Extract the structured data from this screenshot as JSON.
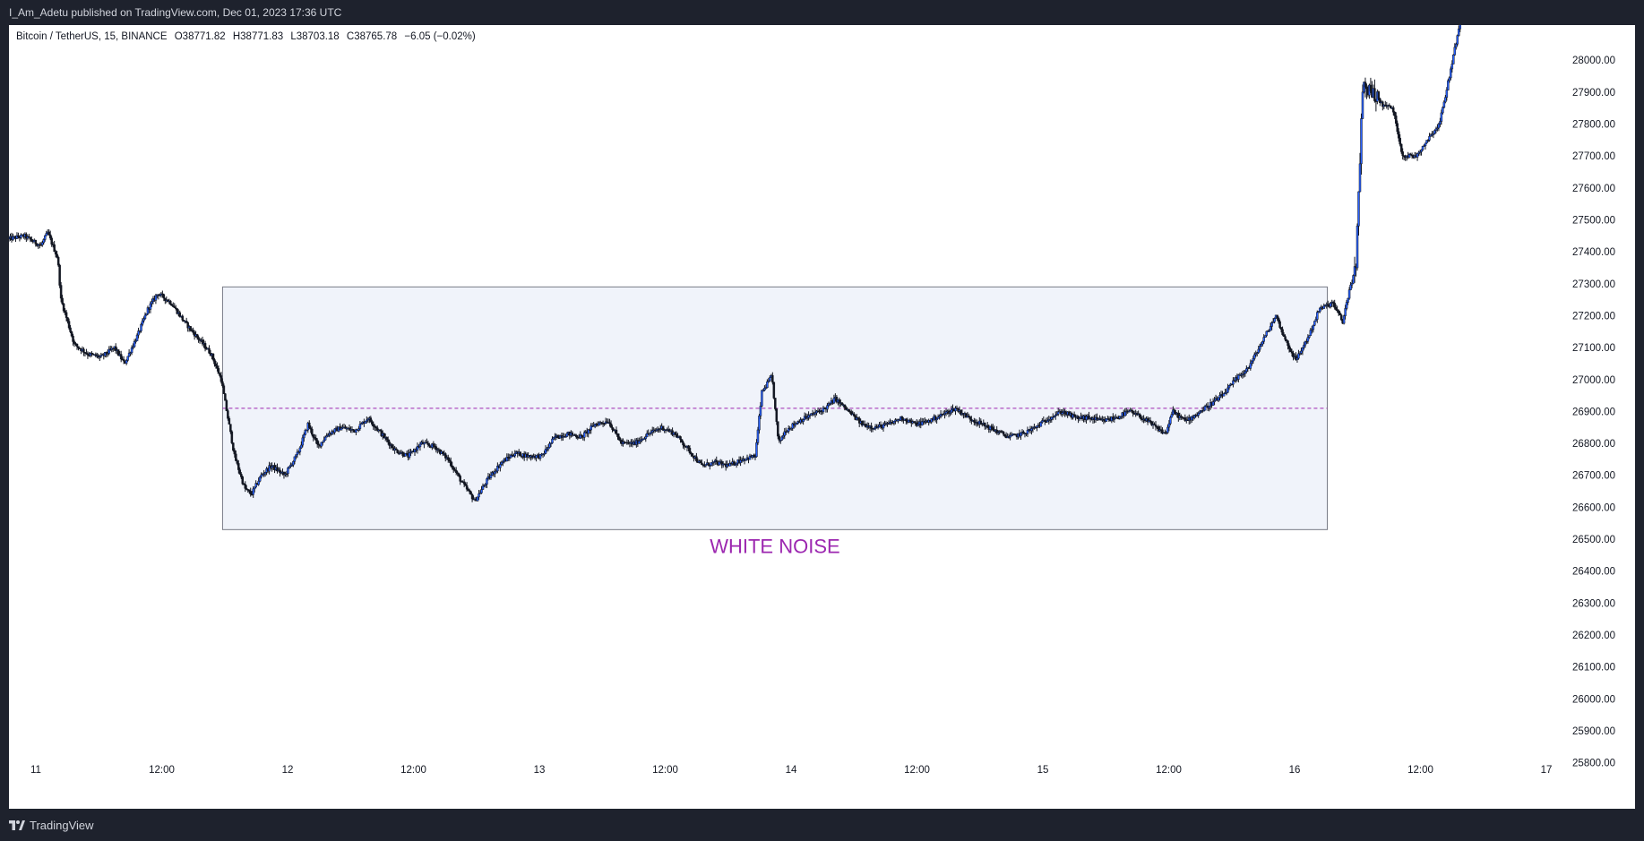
{
  "header": {
    "publisher_line": "I_Am_Adetu published on TradingView.com, Dec 01, 2023 17:36 UTC"
  },
  "legend": {
    "symbol": "Bitcoin / TetherUS, 15, BINANCE",
    "open": "O38771.82",
    "high": "H38771.83",
    "low": "L38703.18",
    "close": "C38765.78",
    "change": "−6.05 (−0.02%)"
  },
  "footer": {
    "brand": "TradingView"
  },
  "chart_data": {
    "type": "candlestick",
    "symbol": "Bitcoin / TetherUS",
    "interval": "15",
    "exchange": "BINANCE",
    "y_axis": {
      "ylim": [
        25740,
        28110
      ],
      "ticks": [
        "28000.00",
        "27900.00",
        "27800.00",
        "27700.00",
        "27600.00",
        "27500.00",
        "27400.00",
        "27300.00",
        "27200.00",
        "27100.00",
        "27000.00",
        "26900.00",
        "26800.00",
        "26700.00",
        "26600.00",
        "26500.00",
        "26400.00",
        "26300.00",
        "26200.00",
        "26100.00",
        "26000.00",
        "25900.00",
        "25800.00"
      ],
      "position": "right"
    },
    "x_axis": {
      "ticks": [
        "11",
        "12:00",
        "12",
        "12:00",
        "13",
        "12:00",
        "14",
        "12:00",
        "15",
        "12:00",
        "16",
        "12:00",
        "17"
      ]
    },
    "price_path": [
      [
        0.0,
        27440
      ],
      [
        0.5,
        27450
      ],
      [
        0.8,
        27430
      ],
      [
        1.0,
        27420
      ],
      [
        1.2,
        27460
      ],
      [
        1.5,
        27380
      ],
      [
        1.6,
        27250
      ],
      [
        2.0,
        27110
      ],
      [
        2.4,
        27080
      ],
      [
        2.8,
        27070
      ],
      [
        3.2,
        27100
      ],
      [
        3.5,
        27050
      ],
      [
        3.9,
        27140
      ],
      [
        4.2,
        27220
      ],
      [
        4.5,
        27270
      ],
      [
        4.9,
        27240
      ],
      [
        5.3,
        27180
      ],
      [
        5.7,
        27130
      ],
      [
        6.1,
        27080
      ],
      [
        6.4,
        27000
      ],
      [
        6.8,
        26760
      ],
      [
        7.1,
        26660
      ],
      [
        7.3,
        26640
      ],
      [
        7.6,
        26700
      ],
      [
        7.9,
        26730
      ],
      [
        8.3,
        26700
      ],
      [
        8.7,
        26770
      ],
      [
        9.0,
        26860
      ],
      [
        9.3,
        26790
      ],
      [
        9.6,
        26830
      ],
      [
        10.0,
        26850
      ],
      [
        10.4,
        26840
      ],
      [
        10.8,
        26880
      ],
      [
        11.2,
        26830
      ],
      [
        11.6,
        26780
      ],
      [
        12.0,
        26760
      ],
      [
        12.4,
        26800
      ],
      [
        12.8,
        26790
      ],
      [
        13.2,
        26750
      ],
      [
        13.6,
        26680
      ],
      [
        14.0,
        26620
      ],
      [
        14.4,
        26690
      ],
      [
        14.8,
        26740
      ],
      [
        15.2,
        26770
      ],
      [
        15.6,
        26760
      ],
      [
        16.0,
        26760
      ],
      [
        16.4,
        26820
      ],
      [
        16.8,
        26830
      ],
      [
        17.2,
        26820
      ],
      [
        17.6,
        26860
      ],
      [
        18.0,
        26870
      ],
      [
        18.4,
        26800
      ],
      [
        18.8,
        26800
      ],
      [
        19.2,
        26830
      ],
      [
        19.6,
        26850
      ],
      [
        20.0,
        26830
      ],
      [
        20.4,
        26780
      ],
      [
        20.8,
        26730
      ],
      [
        21.2,
        26740
      ],
      [
        21.6,
        26730
      ],
      [
        22.0,
        26750
      ],
      [
        22.4,
        26760
      ],
      [
        22.6,
        26960
      ],
      [
        22.9,
        27010
      ],
      [
        23.1,
        26800
      ],
      [
        23.3,
        26840
      ],
      [
        23.7,
        26870
      ],
      [
        24.1,
        26890
      ],
      [
        24.5,
        26910
      ],
      [
        24.8,
        26940
      ],
      [
        25.2,
        26900
      ],
      [
        25.6,
        26860
      ],
      [
        26.0,
        26850
      ],
      [
        26.4,
        26860
      ],
      [
        26.8,
        26880
      ],
      [
        27.2,
        26860
      ],
      [
        27.6,
        26870
      ],
      [
        28.0,
        26890
      ],
      [
        28.4,
        26910
      ],
      [
        28.8,
        26880
      ],
      [
        29.2,
        26860
      ],
      [
        29.6,
        26840
      ],
      [
        30.0,
        26820
      ],
      [
        30.4,
        26830
      ],
      [
        30.8,
        26850
      ],
      [
        31.2,
        26880
      ],
      [
        31.6,
        26900
      ],
      [
        32.0,
        26880
      ],
      [
        32.4,
        26880
      ],
      [
        32.8,
        26870
      ],
      [
        33.2,
        26880
      ],
      [
        33.6,
        26900
      ],
      [
        34.0,
        26880
      ],
      [
        34.4,
        26850
      ],
      [
        34.7,
        26830
      ],
      [
        34.9,
        26900
      ],
      [
        35.3,
        26870
      ],
      [
        35.6,
        26890
      ],
      [
        36.0,
        26920
      ],
      [
        36.4,
        26950
      ],
      [
        36.8,
        27000
      ],
      [
        37.2,
        27040
      ],
      [
        37.6,
        27120
      ],
      [
        38.0,
        27200
      ],
      [
        38.3,
        27120
      ],
      [
        38.6,
        27060
      ],
      [
        39.0,
        27140
      ],
      [
        39.3,
        27220
      ],
      [
        39.7,
        27240
      ],
      [
        40.0,
        27180
      ],
      [
        40.2,
        27280
      ],
      [
        40.4,
        27350
      ],
      [
        40.6,
        27920
      ],
      [
        40.9,
        27900
      ],
      [
        41.2,
        27860
      ],
      [
        41.5,
        27850
      ],
      [
        41.8,
        27700
      ],
      [
        42.2,
        27700
      ],
      [
        42.6,
        27760
      ],
      [
        42.9,
        27800
      ],
      [
        43.2,
        27950
      ],
      [
        43.5,
        28110
      ]
    ],
    "x_domain": [
      0,
      45.5
    ],
    "annotations": [
      {
        "type": "rectangle",
        "label": "WHITE NOISE",
        "x_range": [
          6.4,
          39.5
        ],
        "y_range": [
          26530,
          27290
        ],
        "label_color": "#9c27b0"
      },
      {
        "type": "horizontal_line",
        "y": 26910,
        "x_range": [
          6.4,
          39.5
        ],
        "style": "dashed",
        "color": "#9c27b0"
      }
    ],
    "colors": {
      "up_candle": "#2962ff",
      "down_candle": "#131722",
      "wick": "#131722",
      "box_fill": "#f0f3fa",
      "box_border": "#787b86"
    }
  }
}
